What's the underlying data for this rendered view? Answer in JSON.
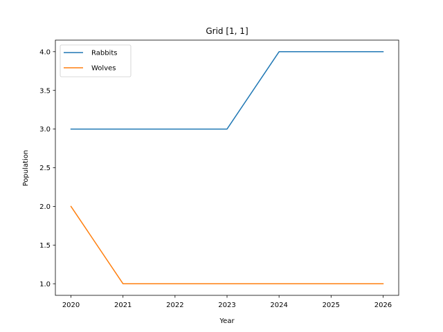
{
  "chart_data": {
    "type": "line",
    "title": "Grid [1, 1]",
    "xlabel": "Year",
    "ylabel": "Population",
    "x": [
      2020,
      2021,
      2022,
      2023,
      2024,
      2025,
      2026
    ],
    "x_ticks": [
      "2020",
      "2021",
      "2022",
      "2023",
      "2024",
      "2025",
      "2026"
    ],
    "y_ticks": [
      "1.0",
      "1.5",
      "2.0",
      "2.5",
      "3.0",
      "3.5",
      "4.0"
    ],
    "xlim": [
      2019.7,
      2026.3
    ],
    "ylim": [
      0.85,
      4.15
    ],
    "grid": false,
    "legend_position": "upper-left",
    "series": [
      {
        "name": "Rabbits",
        "color": "#1f77b4",
        "values": [
          3,
          3,
          3,
          3,
          4,
          4,
          4
        ]
      },
      {
        "name": "Wolves",
        "color": "#ff7f0e",
        "values": [
          2,
          1,
          1,
          1,
          1,
          1,
          1
        ]
      }
    ]
  }
}
